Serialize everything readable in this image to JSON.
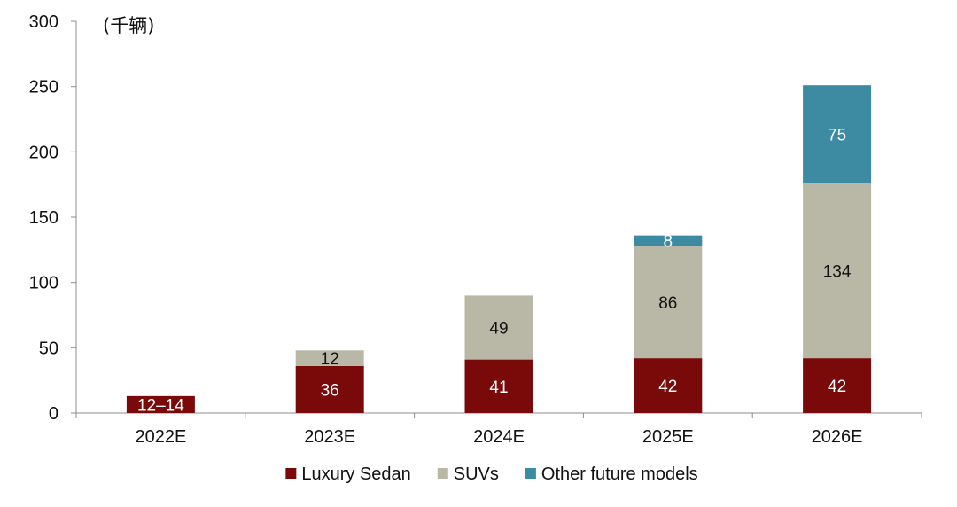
{
  "chart_data": {
    "type": "bar",
    "stacked": true,
    "unit_label": "(千辆)",
    "categories": [
      "2022E",
      "2023E",
      "2024E",
      "2025E",
      "2026E"
    ],
    "ylim": [
      0,
      300
    ],
    "yticks": [
      0,
      50,
      100,
      150,
      200,
      250,
      300
    ],
    "series": [
      {
        "name": "Luxury Sedan",
        "color": "#7a0a0a",
        "values": [
          13,
          36,
          41,
          42,
          42
        ],
        "labels": [
          "12–14",
          "36",
          "41",
          "42",
          "42"
        ],
        "label_color": "#ffffff"
      },
      {
        "name": "SUVs",
        "color": "#b9b8a7",
        "values": [
          0,
          12,
          49,
          86,
          134
        ],
        "labels": [
          "",
          "12",
          "49",
          "86",
          "134"
        ],
        "label_color": "#111111"
      },
      {
        "name": "Other future models",
        "color": "#3d8ba3",
        "values": [
          0,
          0,
          0,
          8,
          75
        ],
        "labels": [
          "",
          "",
          "",
          "8",
          "75"
        ],
        "label_color": "#ffffff"
      }
    ],
    "legend_position": "bottom"
  }
}
